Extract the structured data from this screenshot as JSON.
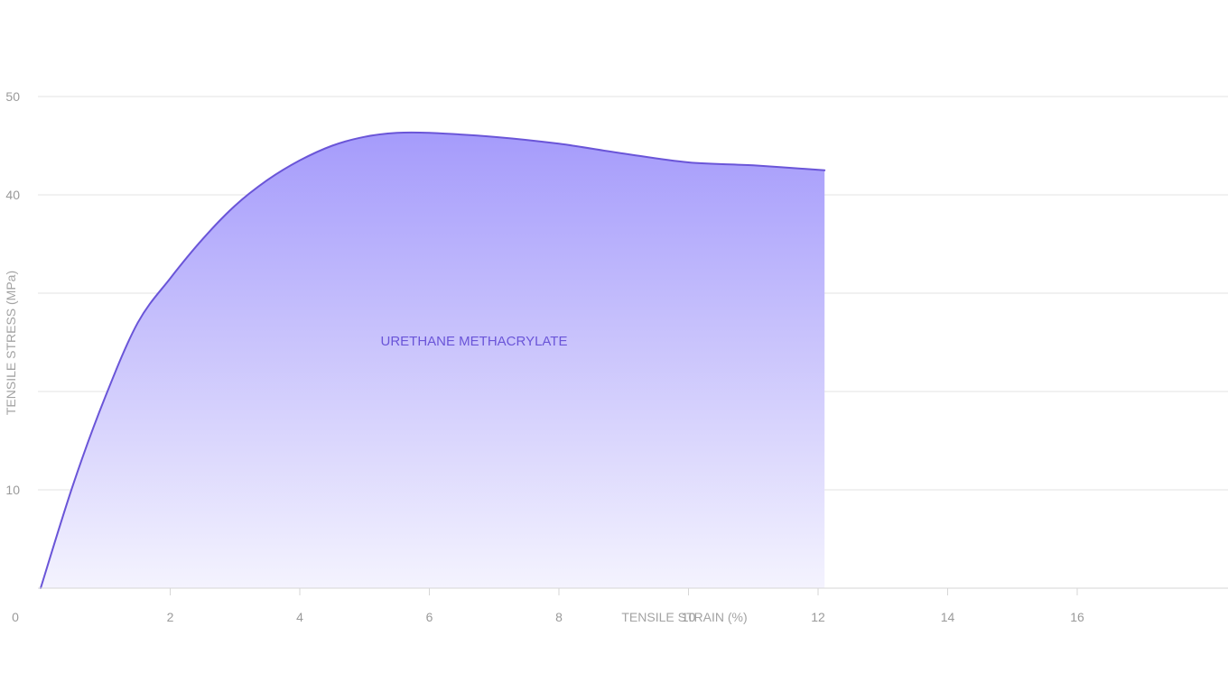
{
  "chart_data": {
    "type": "area",
    "title": "",
    "xlabel": "TENSILE STRAIN (%)",
    "ylabel": "TENSILE STRESS (MPa)",
    "xlim": [
      0,
      16
    ],
    "ylim": [
      0,
      50
    ],
    "x_ticks": [
      0,
      2,
      4,
      6,
      8,
      10,
      12,
      14,
      16
    ],
    "x_tick_labels": [
      "0",
      "2",
      "4",
      "6",
      "8",
      "10",
      "12",
      "14",
      "16"
    ],
    "y_gridlines": [
      10,
      20,
      30,
      40,
      50
    ],
    "y_tick_labels": [
      {
        "value": 50,
        "label": "50"
      },
      {
        "value": 40,
        "label": "40"
      },
      {
        "value": 10,
        "label": "10"
      }
    ],
    "grid": true,
    "series": [
      {
        "name": "URETHANE METHACRYLATE",
        "color": "#6a55d8",
        "fill_top": "#a59bfb",
        "fill_bottom": "#f4f3fe",
        "x": [
          0,
          0.5,
          1.0,
          1.5,
          2.0,
          2.5,
          3.0,
          3.5,
          4.0,
          4.5,
          5.0,
          5.5,
          6.0,
          7.0,
          8.0,
          9.0,
          10.0,
          11.0,
          12.1
        ],
        "y": [
          0,
          10.5,
          19.5,
          27.0,
          31.5,
          35.5,
          38.9,
          41.5,
          43.5,
          45.0,
          45.9,
          46.3,
          46.3,
          45.9,
          45.2,
          44.2,
          43.3,
          43.0,
          42.5
        ]
      }
    ]
  }
}
